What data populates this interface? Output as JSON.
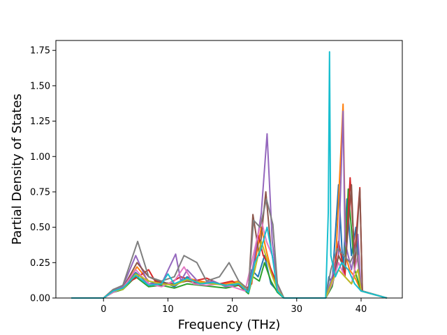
{
  "chart_data": {
    "type": "line",
    "title": "",
    "xlabel": "Frequency (THz)",
    "ylabel": "Partial Density of States",
    "xlim": [
      -7.4,
      46.4
    ],
    "ylim": [
      0.0,
      1.82
    ],
    "xticks": [
      0,
      10,
      20,
      30,
      40
    ],
    "xtick_labels": [
      "0",
      "10",
      "20",
      "30",
      "40"
    ],
    "yticks": [
      0.0,
      0.25,
      0.5,
      0.75,
      1.0,
      1.25,
      1.5,
      1.75
    ],
    "ytick_labels": [
      "0.00",
      "0.25",
      "0.50",
      "0.75",
      "1.00",
      "1.25",
      "1.50",
      "1.75"
    ],
    "grid": false,
    "legend": "none",
    "series_colors": [
      "#1f77b4",
      "#ff7f0e",
      "#2ca02c",
      "#d62728",
      "#9467bd",
      "#8c564b",
      "#e377c2",
      "#7f7f7f",
      "#bcbd22",
      "#17becf"
    ],
    "series": [
      {
        "color": "#1f77b4",
        "x": [
          -5,
          0,
          1.5,
          3,
          5,
          7,
          9,
          11,
          13,
          15,
          17,
          19,
          21,
          22.5,
          23,
          24,
          25,
          26,
          27,
          28,
          30,
          34.5,
          35,
          35.5,
          36.5,
          37.2,
          37.8,
          38.5,
          39.2,
          40,
          44
        ],
        "y": [
          0,
          0,
          0.05,
          0.08,
          0.18,
          0.1,
          0.12,
          0.08,
          0.15,
          0.1,
          0.12,
          0.08,
          0.1,
          0.05,
          0.2,
          0.15,
          0.3,
          0.1,
          0.05,
          0,
          0,
          0,
          0.15,
          0.1,
          0.8,
          0.2,
          0.7,
          0.3,
          0.5,
          0.05,
          0
        ]
      },
      {
        "color": "#ff7f0e",
        "x": [
          -5,
          0,
          1.5,
          3,
          5.2,
          7,
          9,
          11,
          13,
          15,
          17,
          19,
          21,
          22.5,
          23.5,
          24.5,
          25.2,
          26,
          27,
          28,
          30,
          34.5,
          35.2,
          36,
          37.2,
          37.6,
          38.2,
          39,
          40,
          44
        ],
        "y": [
          0,
          0,
          0.06,
          0.07,
          0.22,
          0.12,
          0.1,
          0.1,
          0.14,
          0.12,
          0.1,
          0.1,
          0.12,
          0.04,
          0.25,
          0.5,
          0.35,
          0.2,
          0.08,
          0,
          0,
          0,
          0.1,
          0.2,
          1.37,
          0.3,
          0.2,
          0.15,
          0.05,
          0
        ]
      },
      {
        "color": "#2ca02c",
        "x": [
          -5,
          0,
          1.5,
          3,
          5,
          7,
          9,
          11,
          13,
          15,
          17,
          19,
          21,
          22.5,
          23.2,
          24.2,
          25,
          26,
          27,
          28,
          30,
          34.5,
          35.5,
          36.5,
          37.5,
          38,
          39,
          40,
          44
        ],
        "y": [
          0,
          0,
          0.04,
          0.06,
          0.15,
          0.08,
          0.09,
          0.07,
          0.1,
          0.09,
          0.08,
          0.07,
          0.09,
          0.03,
          0.15,
          0.12,
          0.25,
          0.12,
          0.04,
          0,
          0,
          0,
          0.08,
          0.3,
          0.2,
          0.77,
          0.2,
          0.05,
          0
        ]
      },
      {
        "color": "#d62728",
        "x": [
          -5,
          0,
          1.5,
          3,
          5,
          7,
          8,
          10,
          12,
          14,
          16,
          18,
          20,
          22,
          23,
          24,
          24.8,
          25.6,
          26.5,
          27.5,
          28,
          30,
          34.5,
          35.5,
          36.5,
          37.5,
          38.3,
          39,
          39.8,
          40.2,
          44
        ],
        "y": [
          0,
          0,
          0.05,
          0.09,
          0.14,
          0.2,
          0.12,
          0.1,
          0.15,
          0.12,
          0.14,
          0.1,
          0.12,
          0.06,
          0.1,
          0.45,
          0.3,
          0.25,
          0.15,
          0.05,
          0,
          0,
          0,
          0.1,
          0.4,
          0.15,
          0.85,
          0.3,
          0.78,
          0.05,
          0
        ]
      },
      {
        "color": "#9467bd",
        "x": [
          -5,
          0,
          1.5,
          3,
          5,
          7,
          9,
          11.2,
          12,
          13,
          15,
          17,
          19,
          21,
          22.5,
          23.5,
          24.5,
          25.4,
          26.2,
          27,
          28,
          30,
          34.5,
          35.5,
          36.5,
          37.2,
          37.5,
          38.5,
          39.5,
          40,
          44
        ],
        "y": [
          0,
          0,
          0.06,
          0.08,
          0.3,
          0.1,
          0.1,
          0.31,
          0.12,
          0.2,
          0.1,
          0.12,
          0.08,
          0.1,
          0.04,
          0.3,
          0.6,
          1.16,
          0.4,
          0.1,
          0,
          0,
          0,
          0.15,
          0.3,
          1.32,
          0.4,
          0.2,
          0.45,
          0.05,
          0
        ]
      },
      {
        "color": "#8c564b",
        "x": [
          -5,
          0,
          1.5,
          3,
          5.2,
          7,
          9,
          11,
          13,
          15,
          17,
          19,
          21,
          22.5,
          23.2,
          24.2,
          25.2,
          26,
          27,
          28,
          30,
          34.5,
          35.5,
          36.5,
          37.5,
          38.5,
          39,
          39.8,
          40.2,
          44
        ],
        "y": [
          0,
          0,
          0.05,
          0.07,
          0.25,
          0.15,
          0.11,
          0.1,
          0.12,
          0.1,
          0.11,
          0.09,
          0.1,
          0.05,
          0.59,
          0.3,
          0.75,
          0.35,
          0.1,
          0,
          0,
          0,
          0.1,
          0.3,
          0.2,
          0.8,
          0.2,
          0.77,
          0.05,
          0
        ]
      },
      {
        "color": "#e377c2",
        "x": [
          -5,
          0,
          1.5,
          3,
          5,
          7,
          9,
          11,
          12.5,
          14,
          16,
          18,
          20,
          22,
          23.5,
          24.5,
          25.3,
          26.2,
          27,
          28,
          30,
          34.5,
          35.5,
          36.5,
          37.5,
          38.5,
          39.5,
          40,
          44
        ],
        "y": [
          0,
          0,
          0.04,
          0.07,
          0.2,
          0.1,
          0.08,
          0.12,
          0.22,
          0.1,
          0.09,
          0.1,
          0.08,
          0.05,
          0.35,
          0.55,
          0.4,
          0.3,
          0.08,
          0,
          0,
          0,
          0.1,
          0.25,
          0.15,
          0.1,
          0.3,
          0.05,
          0
        ]
      },
      {
        "color": "#7f7f7f",
        "x": [
          -5,
          0,
          1.5,
          3,
          5.3,
          7,
          9,
          11,
          12.5,
          14.5,
          16,
          18,
          19.5,
          21,
          22.5,
          23.3,
          24.3,
          25.3,
          26.3,
          27,
          28,
          30,
          34.5,
          35.3,
          36.3,
          37.3,
          38.3,
          39.3,
          40,
          44
        ],
        "y": [
          0,
          0,
          0.06,
          0.09,
          0.4,
          0.15,
          0.12,
          0.15,
          0.3,
          0.25,
          0.12,
          0.15,
          0.25,
          0.12,
          0.06,
          0.55,
          0.5,
          0.7,
          0.52,
          0.1,
          0,
          0,
          0,
          0.2,
          0.35,
          0.3,
          0.25,
          0.35,
          0.05,
          0
        ]
      },
      {
        "color": "#bcbd22",
        "x": [
          -5,
          0,
          1.5,
          3,
          5,
          7,
          9,
          11,
          13,
          15,
          17,
          19,
          21,
          22.5,
          23.5,
          24.5,
          25.2,
          26,
          27,
          28,
          30,
          34.5,
          35.5,
          36.5,
          37.5,
          38.5,
          39.5,
          40,
          44
        ],
        "y": [
          0,
          0,
          0.05,
          0.06,
          0.17,
          0.12,
          0.1,
          0.09,
          0.13,
          0.11,
          0.1,
          0.09,
          0.11,
          0.04,
          0.2,
          0.4,
          0.3,
          0.18,
          0.06,
          0,
          0,
          0,
          0.12,
          0.2,
          0.15,
          0.1,
          0.2,
          0.05,
          0
        ]
      },
      {
        "color": "#17becf",
        "x": [
          -5,
          0,
          1.5,
          3,
          5,
          7,
          9,
          10,
          11,
          13,
          15,
          17,
          19,
          21,
          22.5,
          23.5,
          24.5,
          25.4,
          26.2,
          27,
          28,
          30,
          34.5,
          34.9,
          35.1,
          35.3,
          36,
          37,
          38,
          39,
          40,
          44
        ],
        "y": [
          0,
          0,
          0.05,
          0.07,
          0.16,
          0.09,
          0.1,
          0.17,
          0.1,
          0.14,
          0.1,
          0.11,
          0.09,
          0.1,
          0.04,
          0.25,
          0.35,
          0.5,
          0.3,
          0.05,
          0,
          0,
          0,
          0.6,
          1.74,
          0.3,
          0.15,
          0.25,
          0.2,
          0.1,
          0.05,
          0
        ]
      }
    ]
  }
}
